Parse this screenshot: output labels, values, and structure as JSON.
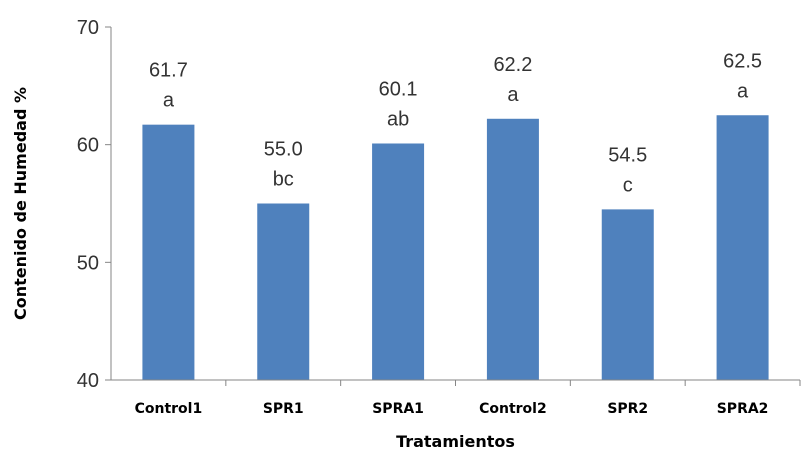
{
  "chart_data": {
    "type": "bar",
    "title": "",
    "xlabel": "Tratamientos",
    "ylabel": "Contenido de Humedad %",
    "ylim": [
      40,
      70
    ],
    "yticks": [
      40,
      50,
      60,
      70
    ],
    "grid": false,
    "bar_color": "#4f81bd",
    "categories": [
      "Control1",
      "SPR1",
      "SPRA1",
      "Control2",
      "SPR2",
      "SPRA2"
    ],
    "values": [
      61.7,
      55.0,
      60.1,
      62.2,
      54.5,
      62.5
    ],
    "value_labels": [
      "61.7",
      "55.0",
      "60.1",
      "62.2",
      "54.5",
      "62.5"
    ],
    "group_letters": [
      "a",
      "bc",
      "ab",
      "a",
      "c",
      "a"
    ]
  }
}
